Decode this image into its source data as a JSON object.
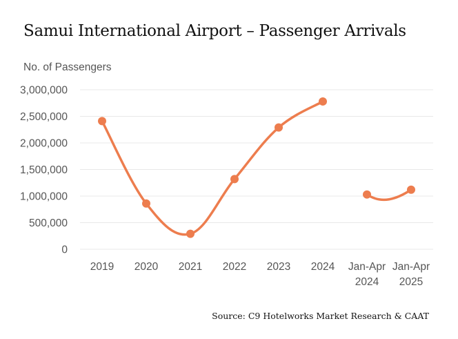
{
  "title": "Samui International Airport – Passenger Arrivals",
  "source": "Source: C9 Hotelworks Market Research & CAAT",
  "chart_data": {
    "type": "line",
    "title": "Samui International Airport – Passenger Arrivals",
    "ylabel": "No. of Passengers",
    "xlabel": "",
    "ylim": [
      0,
      3000000
    ],
    "yticks": [
      0,
      500000,
      1000000,
      1500000,
      2000000,
      2500000,
      3000000
    ],
    "ytick_labels": [
      "0",
      "500,000",
      "1,000,000",
      "1,500,000",
      "2,000,000",
      "2,500,000",
      "3,000,000"
    ],
    "categories": [
      [
        "2019"
      ],
      [
        "2020"
      ],
      [
        "2021"
      ],
      [
        "2022"
      ],
      [
        "2023"
      ],
      [
        "2024"
      ],
      [
        "Jan-Apr",
        "2024"
      ],
      [
        "Jan-Apr",
        "2025"
      ]
    ],
    "series": [
      {
        "segments": [
          {
            "category_indices": [
              0,
              1,
              2,
              3,
              4,
              5
            ],
            "values": [
              2410000,
              860000,
              290000,
              1320000,
              2290000,
              2780000
            ]
          },
          {
            "category_indices": [
              6,
              7
            ],
            "values": [
              1030000,
              1120000
            ]
          }
        ],
        "color": "#ed7d4e"
      }
    ],
    "grid": true,
    "legend": "none"
  }
}
